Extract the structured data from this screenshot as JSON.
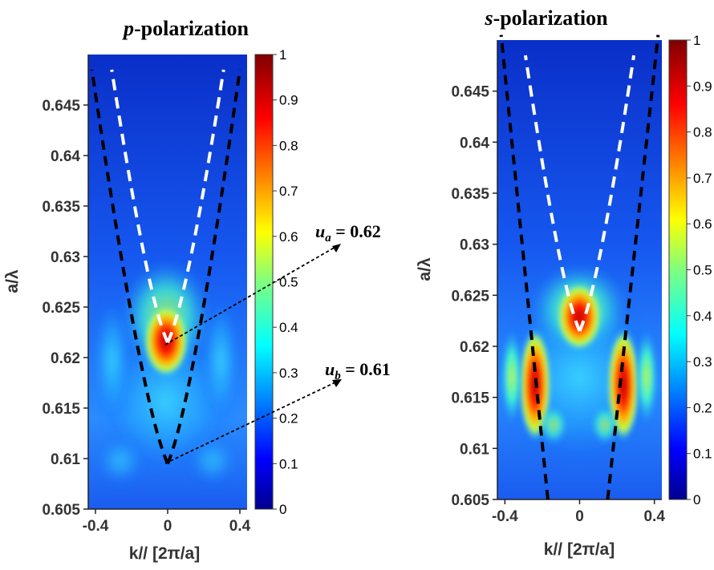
{
  "chart_data": [
    {
      "type": "heatmap",
      "title": "p-polarization",
      "title_italic_prefix": "p",
      "title_rest": "-polarization",
      "xlabel": "k// [2π/a]",
      "ylabel": "a/λ",
      "xlim": [
        -0.44,
        0.44
      ],
      "ylim": [
        0.605,
        0.65
      ],
      "xticks": [
        -0.4,
        0,
        0.4
      ],
      "xtick_labels": [
        "-0.4",
        "0",
        "0.4"
      ],
      "yticks": [
        0.605,
        0.61,
        0.615,
        0.62,
        0.625,
        0.63,
        0.635,
        0.64,
        0.645
      ],
      "ytick_labels": [
        "0.605",
        "0.61",
        "0.615",
        "0.62",
        "0.625",
        "0.63",
        "0.635",
        "0.64",
        "0.645"
      ],
      "colormap": "jet",
      "colorbar_range": [
        0,
        1
      ],
      "colorbar_ticks": [
        "0",
        "0.1",
        "0.2",
        "0.3",
        "0.4",
        "0.5",
        "0.6",
        "0.7",
        "0.8",
        "0.9",
        "1"
      ],
      "overlays": [
        {
          "style": "white-dashed",
          "minimum": [
            0,
            0.6215
          ],
          "top_x": [
            -0.31,
            0.31
          ],
          "top_y": 0.6485
        },
        {
          "style": "black-dashed",
          "minimum": [
            0,
            0.6095
          ],
          "top_x": [
            -0.42,
            0.4
          ],
          "top_y": 0.6485
        }
      ],
      "annotations": [
        {
          "label": "u_a",
          "sub": "a",
          "eq": " = 0.62",
          "point": [
            0,
            0.6215
          ]
        },
        {
          "label": "u_b",
          "sub": "b",
          "eq": " = 0.61",
          "point": [
            0,
            0.6095
          ]
        }
      ]
    },
    {
      "type": "heatmap",
      "title": "s-polarization",
      "title_italic_prefix": "s",
      "title_rest": "-polarization",
      "xlabel": "k// [2π/a]",
      "ylabel": "a/λ",
      "xlim": [
        -0.44,
        0.44
      ],
      "ylim": [
        0.605,
        0.65
      ],
      "xticks": [
        -0.4,
        0,
        0.4
      ],
      "xtick_labels": [
        "-0.4",
        "0",
        "0.4"
      ],
      "yticks": [
        0.605,
        0.61,
        0.615,
        0.62,
        0.625,
        0.63,
        0.635,
        0.64,
        0.645
      ],
      "ytick_labels": [
        "0.605",
        "0.61",
        "0.615",
        "0.62",
        "0.625",
        "0.63",
        "0.635",
        "0.64",
        "0.645"
      ],
      "colormap": "jet",
      "colorbar_range": [
        0,
        1
      ],
      "colorbar_ticks": [
        "0",
        "0.1",
        "0.2",
        "0.3",
        "0.4",
        "0.5",
        "0.6",
        "0.7",
        "0.8",
        "0.9",
        "1"
      ],
      "overlays": [
        {
          "style": "white-dashed",
          "minimum": [
            0,
            0.6215
          ],
          "top_x": [
            -0.29,
            0.29
          ],
          "top_y": 0.6485
        },
        {
          "style": "black-dashed",
          "crossing_bottom_x": [
            -0.17,
            0.15
          ],
          "top_x": [
            -0.42,
            0.42
          ],
          "top_y": 0.6505
        }
      ]
    }
  ],
  "annotation_text": {
    "ua_main": "u",
    "ua_sub": "a",
    "ua_eq": " = 0.62",
    "ub_main": "u",
    "ub_sub": "b",
    "ub_eq": " = 0.61"
  }
}
